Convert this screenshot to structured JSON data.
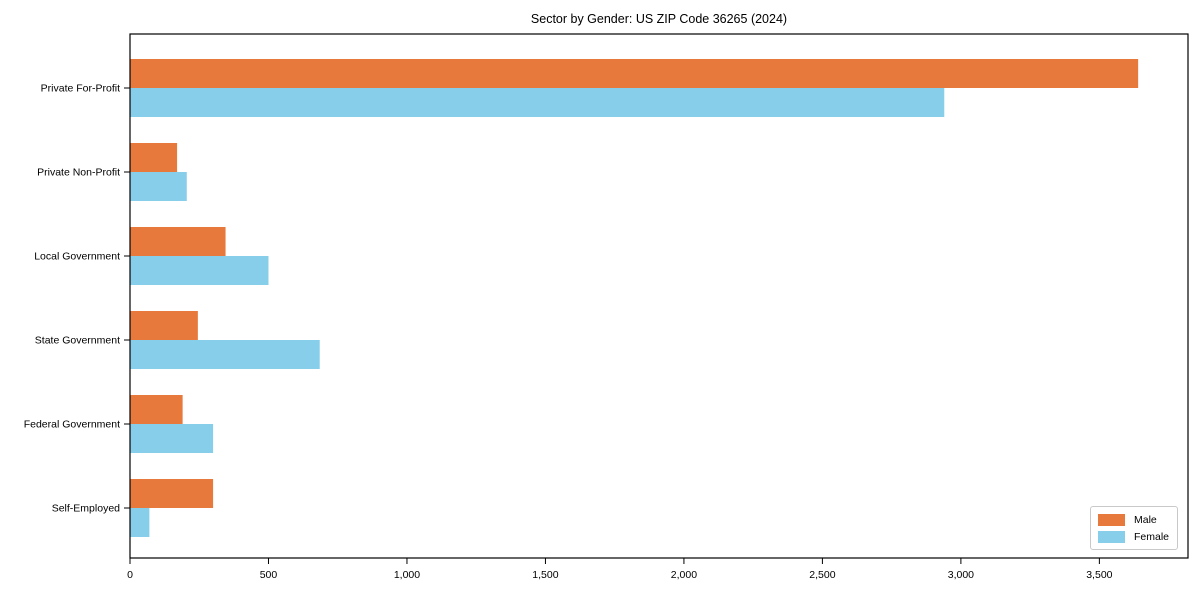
{
  "chart_data": {
    "type": "bar",
    "orientation": "horizontal",
    "title": "Sector by Gender: US ZIP Code 36265 (2024)",
    "categories": [
      "Private For-Profit",
      "Private Non-Profit",
      "Local Government",
      "State Government",
      "Federal Government",
      "Self-Employed"
    ],
    "series": [
      {
        "name": "Male",
        "color": "#e8793d",
        "values": [
          3640,
          170,
          345,
          245,
          190,
          300
        ]
      },
      {
        "name": "Female",
        "color": "#87ceeb",
        "values": [
          2940,
          205,
          500,
          685,
          300,
          70
        ]
      }
    ],
    "xlabel": "",
    "ylabel": "",
    "xlim": [
      0,
      3820
    ],
    "xticks": [
      0,
      500,
      1000,
      1500,
      2000,
      2500,
      3000,
      3500
    ],
    "xtick_labels": [
      "0",
      "500",
      "1,000",
      "1,500",
      "2,000",
      "2,500",
      "3,000",
      "3,500"
    ],
    "grid": false,
    "legend_position": "lower right",
    "axis_color": "#000000",
    "text_color": "#000000",
    "background_color": "#ffffff"
  }
}
